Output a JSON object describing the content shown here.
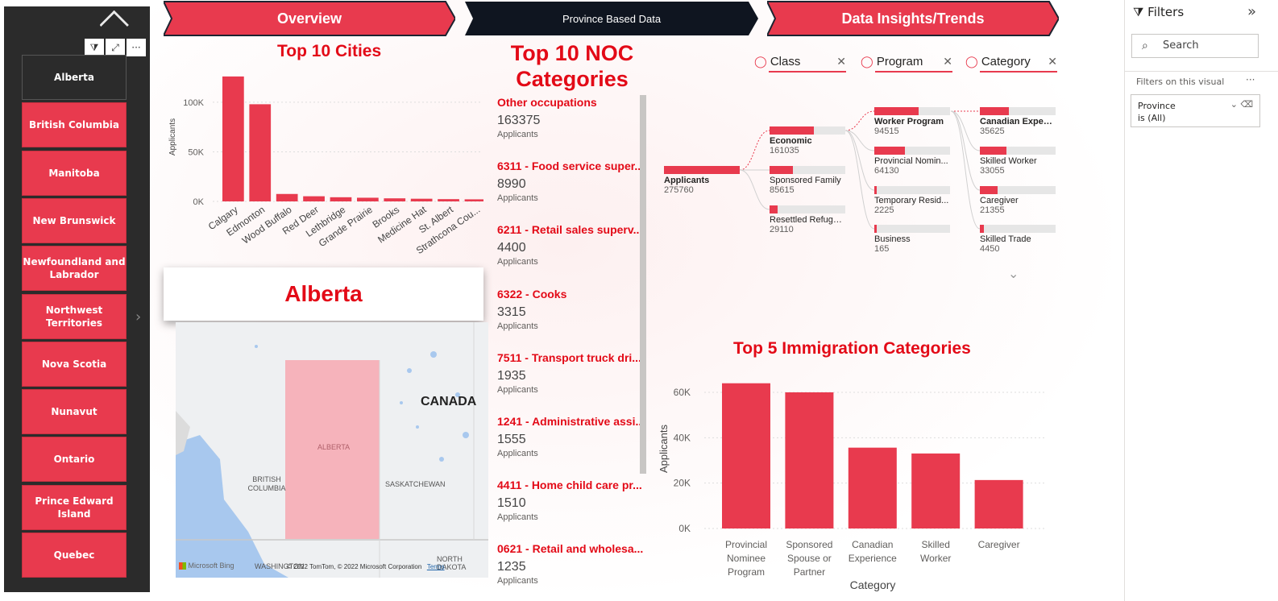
{
  "nav": {
    "overview": "Overview",
    "province_data": "Province Based Data",
    "insights": "Data Insights/Trends"
  },
  "slicer": {
    "provinces": [
      "Alberta",
      "British Columbia",
      "Manitoba",
      "New Brunswick",
      "Newfoundland and Labrador",
      "Northwest Territories",
      "Nova Scotia",
      "Nunavut",
      "Ontario",
      "Prince Edward Island",
      "Quebec"
    ],
    "selected": "Alberta",
    "icons": [
      "filter-icon",
      "focus-mode-icon",
      "more-options-icon"
    ]
  },
  "cities": {
    "title": "Top 10 Cities",
    "chart_data": {
      "type": "bar",
      "title": "Top 10 Cities",
      "ylabel": "Applicants",
      "xlabel": "",
      "categories": [
        "Calgary",
        "Edmonton",
        "Wood Buffalo",
        "Red Deer",
        "Lethbridge",
        "Grande Prairie",
        "Brooks",
        "Medicine Hat",
        "St. Albert",
        "Strathcona Cou..."
      ],
      "values": [
        126000,
        98000,
        7500,
        5200,
        4200,
        3700,
        3100,
        2700,
        2300,
        2100
      ],
      "ylim": [
        0,
        130000
      ],
      "yticks": [
        "0K",
        "50K",
        "100K"
      ],
      "ytick_values": [
        0,
        50000,
        100000
      ],
      "grid": true
    }
  },
  "province_card": {
    "name": "Alberta"
  },
  "map": {
    "country": "CANADA",
    "labels": [
      "ALBERTA",
      "BRITISH COLUMBIA",
      "SASKATCHEWAN",
      "WASHINGTON",
      "NORTH DAKOTA"
    ],
    "attribution": "© 2022 TomTom, © 2022 Microsoft Corporation",
    "terms": "Terms",
    "brand": "Microsoft Bing"
  },
  "noc": {
    "title": "Top 10 NOC Categories",
    "items": [
      {
        "name": "Other occupations",
        "value": "163375",
        "label": "Applicants"
      },
      {
        "name": "6311 - Food service super...",
        "value": "8990",
        "label": "Applicants"
      },
      {
        "name": "6211 - Retail sales superv...",
        "value": "4400",
        "label": "Applicants"
      },
      {
        "name": "6322 - Cooks",
        "value": "3315",
        "label": "Applicants"
      },
      {
        "name": "7511 - Transport truck dri...",
        "value": "1935",
        "label": "Applicants"
      },
      {
        "name": "1241 - Administrative assi...",
        "value": "1555",
        "label": "Applicants"
      },
      {
        "name": "4411 - Home child care pr...",
        "value": "1510",
        "label": "Applicants"
      },
      {
        "name": "0621 - Retail and wholesa...",
        "value": "1235",
        "label": "Applicants"
      }
    ]
  },
  "decomp": {
    "headers": [
      "Class",
      "Program",
      "Category"
    ],
    "root": {
      "label": "Applicants",
      "value": "275760"
    },
    "class": [
      {
        "label": "Economic",
        "value": "161035",
        "frac": 0.58,
        "bold": true
      },
      {
        "label": "Sponsored Family",
        "value": "85615",
        "frac": 0.31
      },
      {
        "label": "Resettled Refugee...",
        "value": "29110",
        "frac": 0.11
      }
    ],
    "program": [
      {
        "label": "Worker Program",
        "value": "94515",
        "frac": 0.59,
        "bold": true
      },
      {
        "label": "Provincial Nomin...",
        "value": "64130",
        "frac": 0.4
      },
      {
        "label": "Temporary Resid...",
        "value": "2225",
        "frac": 0.02
      },
      {
        "label": "Business",
        "value": "165",
        "frac": 0.0
      }
    ],
    "category": [
      {
        "label": "Canadian Experi...",
        "value": "35625",
        "frac": 0.38,
        "bold": true
      },
      {
        "label": "Skilled Worker",
        "value": "33055",
        "frac": 0.35
      },
      {
        "label": "Caregiver",
        "value": "21355",
        "frac": 0.23
      },
      {
        "label": "Skilled Trade",
        "value": "4450",
        "frac": 0.05
      }
    ]
  },
  "imm": {
    "chart_data": {
      "type": "bar",
      "title": "Top 5 Immigration Categories",
      "xlabel": "Category",
      "ylabel": "Applicants",
      "categories": [
        [
          "Provincial",
          "Nominee",
          "Program"
        ],
        [
          "Sponsored",
          "Spouse or",
          "Partner"
        ],
        [
          "Canadian",
          "Experience"
        ],
        [
          "Skilled",
          "Worker"
        ],
        [
          "Caregiver"
        ]
      ],
      "values": [
        64000,
        60000,
        35625,
        33055,
        21355
      ],
      "ylim": [
        0,
        64000
      ],
      "yticks": [
        "0K",
        "20K",
        "40K",
        "60K"
      ],
      "ytick_values": [
        0,
        20000,
        40000,
        60000
      ],
      "grid": true
    }
  },
  "filters": {
    "title": "Filters",
    "search_placeholder": "Search",
    "section": "Filters on this visual",
    "card_field": "Province",
    "card_value": "is (All)"
  },
  "colors": {
    "accent": "#e83a4e",
    "title_red": "#e30a17",
    "nav_dark": "#0f1520",
    "slicer_bg": "#2b2b2b"
  }
}
